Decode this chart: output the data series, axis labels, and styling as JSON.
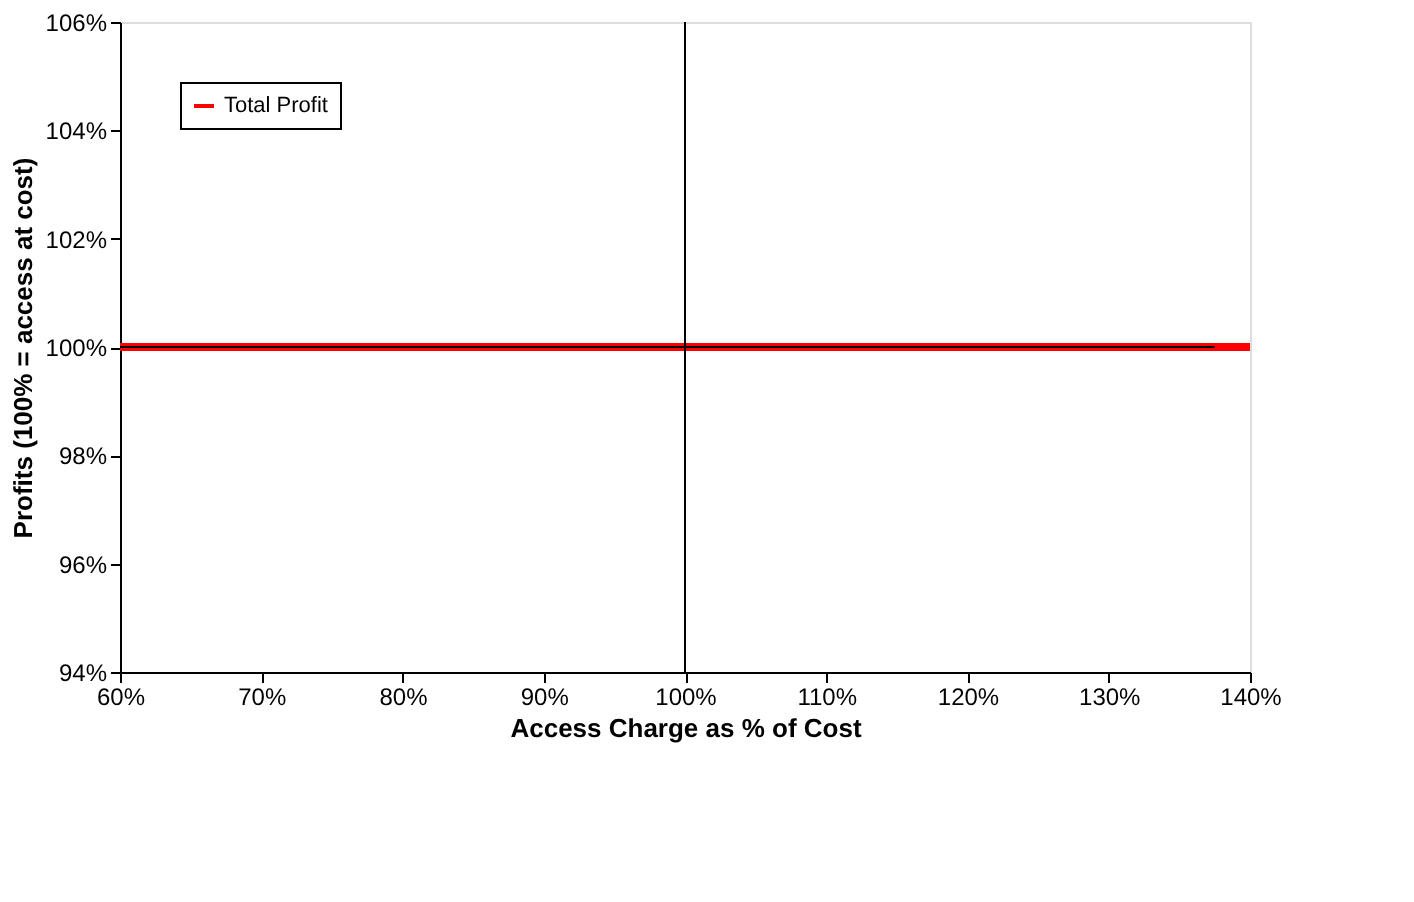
{
  "chart_data": {
    "type": "line",
    "xlabel": "Access Charge as % of Cost",
    "ylabel": "Profits (100% = access at cost)",
    "x": [
      60,
      140
    ],
    "series": [
      {
        "name": "Total Profit",
        "color": "#ff0000",
        "values": [
          100,
          100
        ]
      },
      {
        "color": "#000000",
        "x": [
          60,
          137.5
        ],
        "values": [
          100,
          100
        ]
      }
    ],
    "xlim": [
      60,
      140
    ],
    "xticks": [
      {
        "value": 60,
        "label": "60%"
      },
      {
        "value": 70,
        "label": "70%"
      },
      {
        "value": 80,
        "label": "80%"
      },
      {
        "value": 90,
        "label": "90%"
      },
      {
        "value": 100,
        "label": "100%"
      },
      {
        "value": 110,
        "label": "110%"
      },
      {
        "value": 120,
        "label": "120%"
      },
      {
        "value": 130,
        "label": "130%"
      },
      {
        "value": 140,
        "label": "140%"
      }
    ],
    "ylim": [
      94,
      106
    ],
    "yticks": [
      {
        "value": 94,
        "label": "94%"
      },
      {
        "value": 96,
        "label": "96%"
      },
      {
        "value": 98,
        "label": "98%"
      },
      {
        "value": 100,
        "label": "100%"
      },
      {
        "value": 102,
        "label": "102%"
      },
      {
        "value": 104,
        "label": "104%"
      },
      {
        "value": 106,
        "label": "106%"
      }
    ],
    "ref_lines": [
      {
        "axis": "x",
        "value": 100,
        "color": "#000000"
      }
    ],
    "legend": "top left",
    "grid": false,
    "marker": "none",
    "line_style": "solid"
  }
}
